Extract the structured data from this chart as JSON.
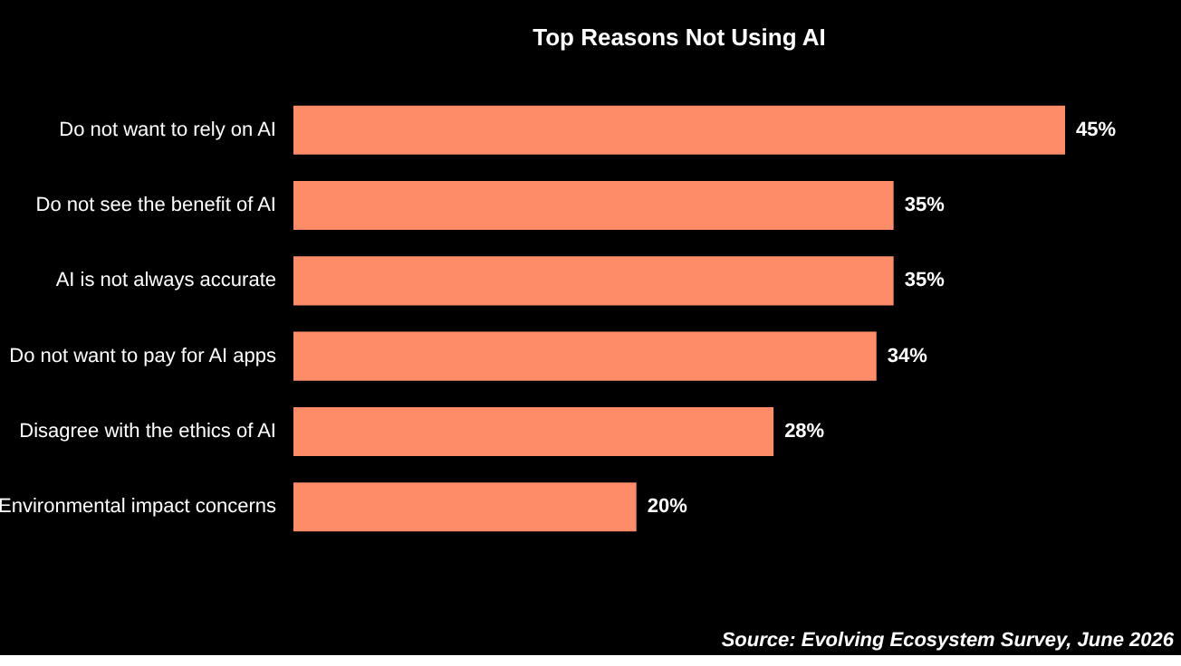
{
  "chart_data": {
    "type": "bar",
    "orientation": "horizontal",
    "title": "Top Reasons Not Using AI",
    "categories": [
      "Do not want to rely on AI",
      "Do not see the benefit of AI",
      "AI is not always accurate",
      "Do not want to pay for AI apps",
      "Disagree with the ethics of AI",
      "Environmental impact concerns"
    ],
    "values": [
      45,
      35,
      35,
      34,
      28,
      20
    ],
    "value_labels": [
      "45%",
      "35%",
      "35%",
      "34%",
      "28%",
      "20%"
    ],
    "color": "#ff8c69",
    "annotations": [
      "Source: Evolving Ecosystem Survey, June 2026"
    ]
  }
}
